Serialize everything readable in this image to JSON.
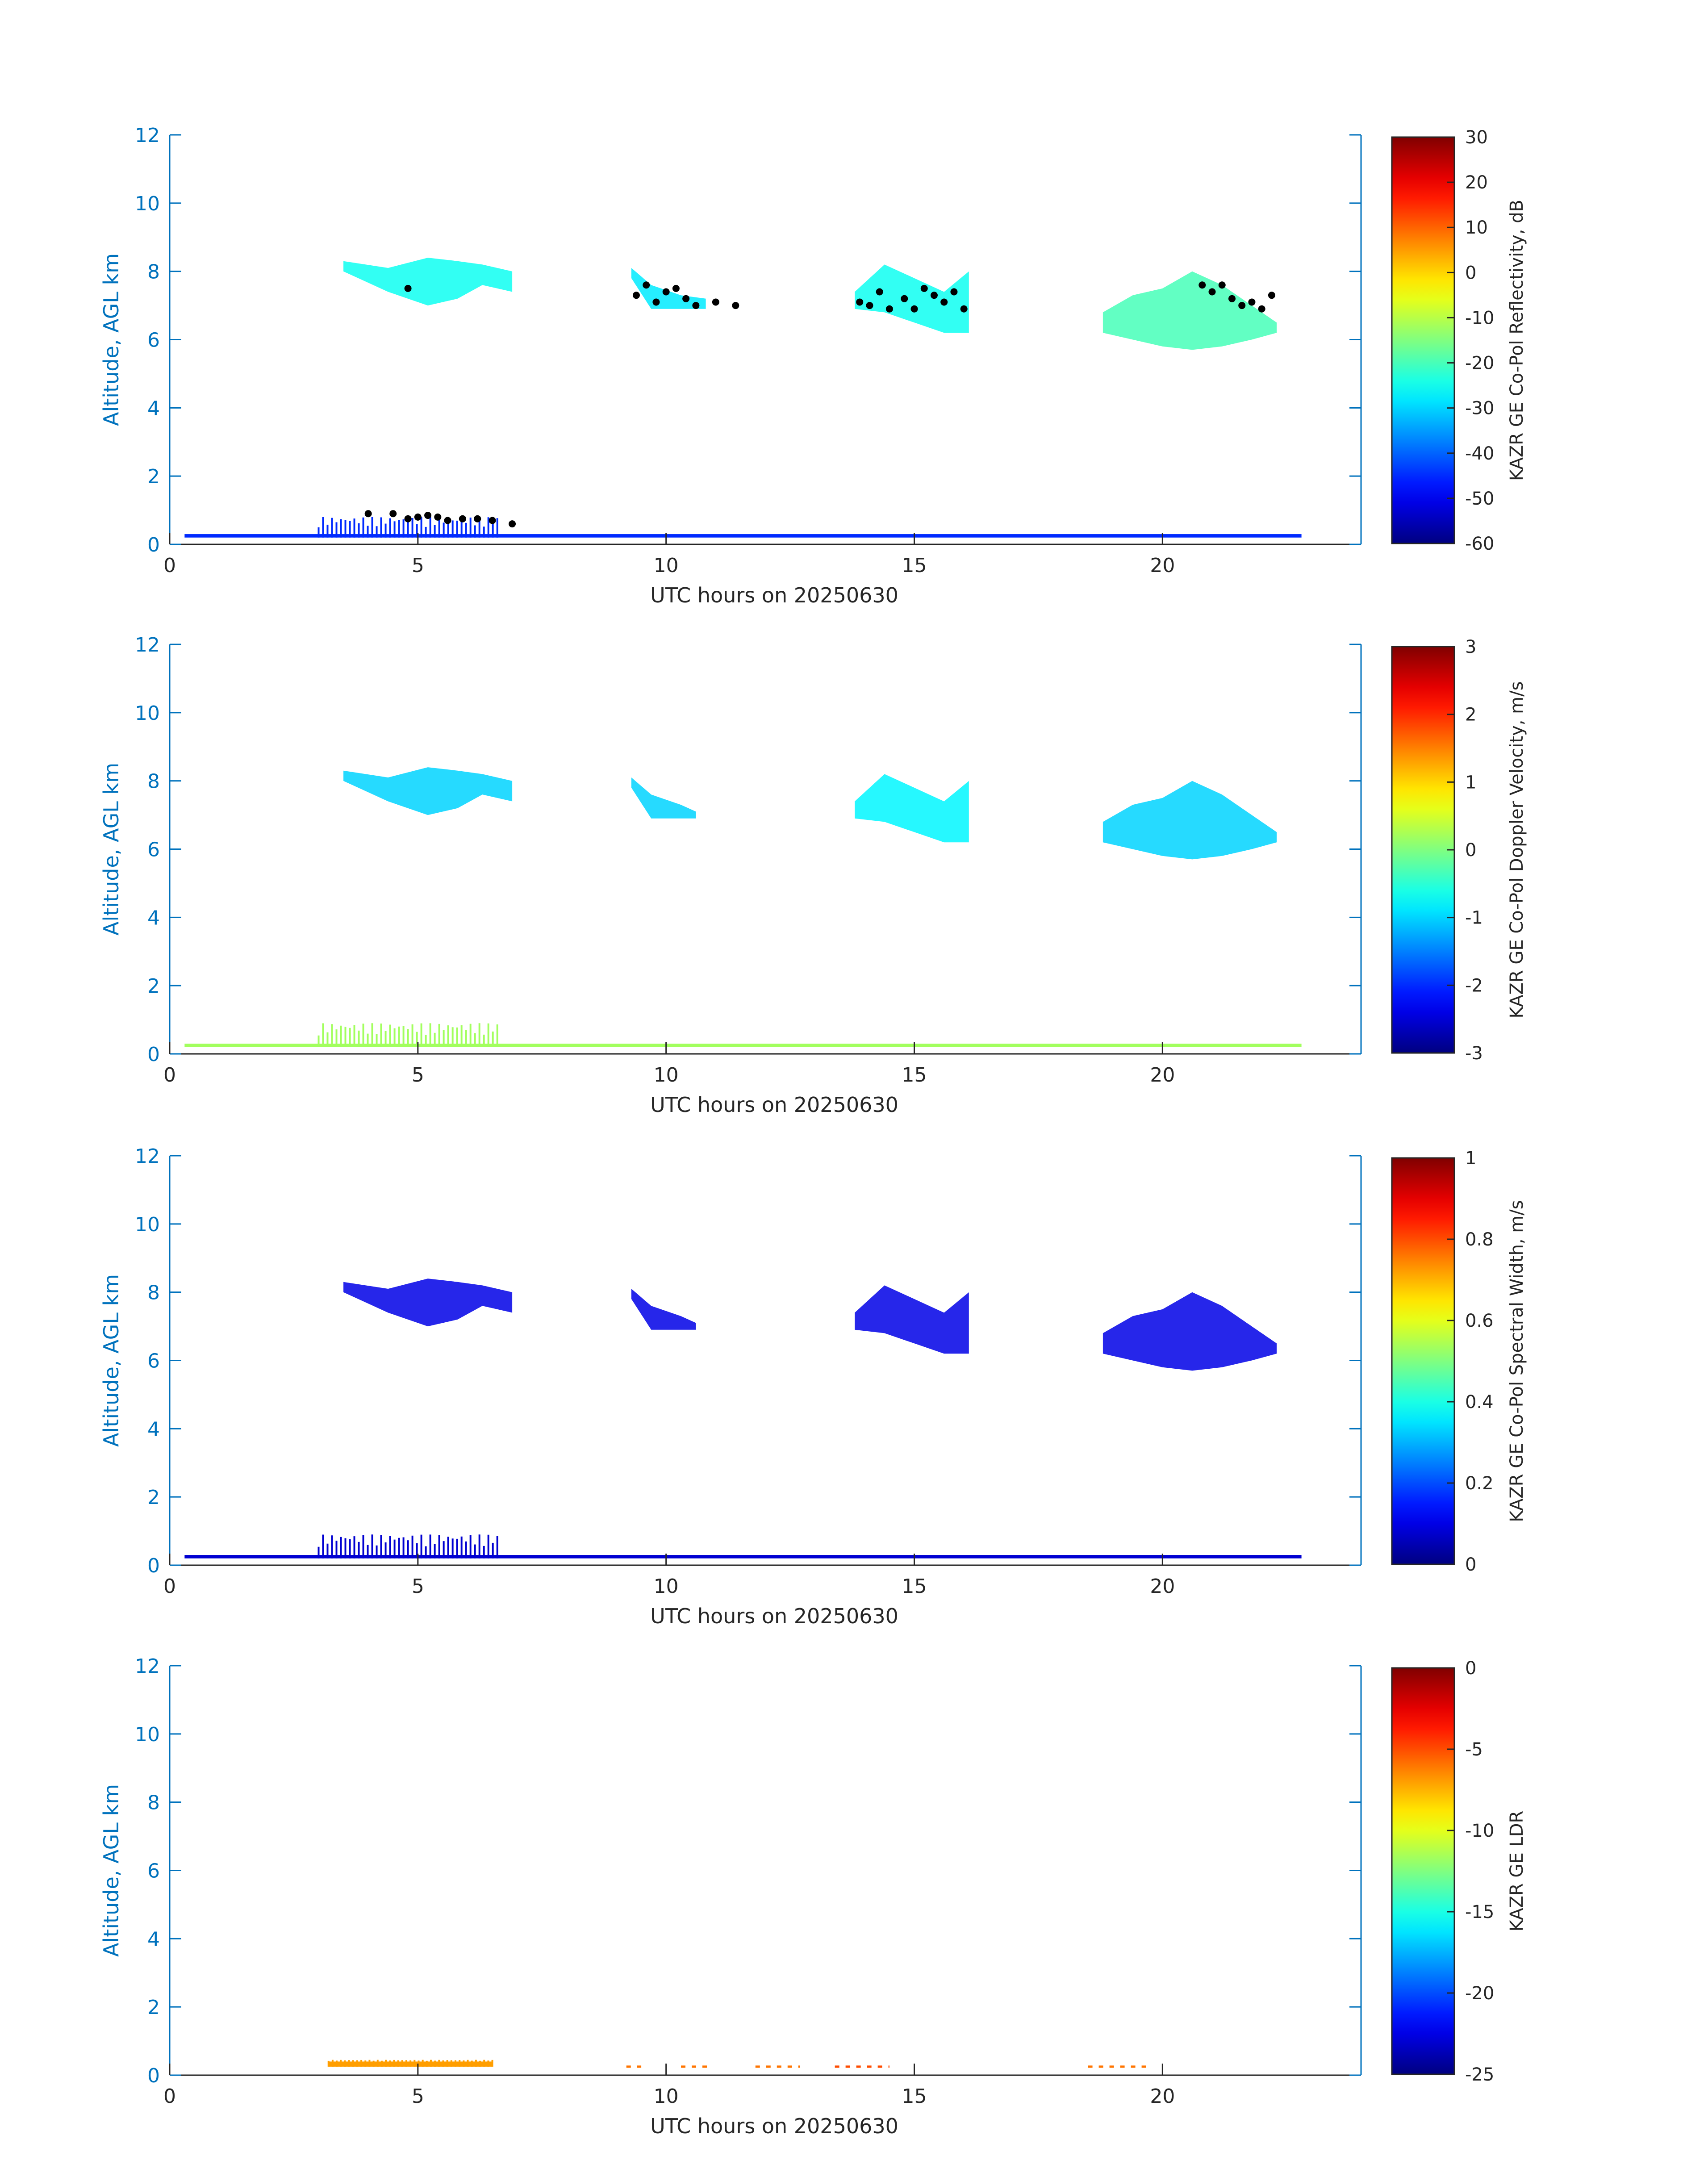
{
  "figure": {
    "colors": {
      "axis": "#0072bd",
      "label": "#262626",
      "background": "#ffffff",
      "contour_markers": "#000000"
    }
  },
  "chart_data": [
    {
      "type": "heatmap",
      "title": "",
      "xlabel": "UTC hours on 20250630",
      "ylabel": "Altitude, AGL km",
      "xlim": [
        0,
        24
      ],
      "ylim": [
        0,
        12
      ],
      "xticks": [
        0,
        5,
        10,
        15,
        20
      ],
      "yticks": [
        0,
        2,
        4,
        6,
        8,
        10,
        12
      ],
      "colorbar": {
        "label": "KAZR GE Co-Pol Reflectivity, dB",
        "colormap": "jet",
        "range": [
          -60,
          30
        ],
        "ticks": [
          30,
          20,
          10,
          0,
          -10,
          -20,
          -30,
          -40,
          -50,
          -60
        ]
      },
      "cloud_regions": [
        {
          "x": [
            3.5,
            4.4,
            5.2,
            5.8,
            6.3,
            6.9
          ],
          "top": [
            8.3,
            8.1,
            8.4,
            8.3,
            8.2,
            8.0
          ],
          "bottom": [
            8.0,
            7.4,
            7.0,
            7.2,
            7.6,
            7.4
          ],
          "value": -25
        },
        {
          "x": [
            9.3,
            9.7,
            10.3,
            10.8
          ],
          "top": [
            8.1,
            7.6,
            7.3,
            7.2
          ],
          "bottom": [
            7.8,
            6.9,
            6.9,
            6.9
          ],
          "value": -28
        },
        {
          "x": [
            13.8,
            14.4,
            15.0,
            15.6,
            16.1
          ],
          "top": [
            7.4,
            8.2,
            7.8,
            7.4,
            8.0
          ],
          "bottom": [
            6.9,
            6.8,
            6.5,
            6.2,
            6.2
          ],
          "value": -25
        },
        {
          "x": [
            18.8,
            19.4,
            20.0,
            20.6,
            21.2,
            21.8,
            22.3
          ],
          "top": [
            6.8,
            7.3,
            7.5,
            8.0,
            7.6,
            7.0,
            6.5
          ],
          "bottom": [
            6.2,
            6.0,
            5.8,
            5.7,
            5.8,
            6.0,
            6.2
          ],
          "value": -20
        }
      ],
      "surface_clutter": {
        "x": [
          0.3,
          22.8
        ],
        "top": 0.3,
        "bottom": 0.2,
        "value": -45,
        "enhanced_range": [
          3.0,
          6.6
        ],
        "enhanced_top": 0.8
      },
      "markers": [
        {
          "x": [
            4.0,
            4.5,
            4.8,
            5.0,
            5.2,
            5.4,
            5.6,
            5.9,
            6.2,
            6.5,
            6.9
          ],
          "y": [
            0.9,
            0.9,
            0.75,
            0.8,
            0.85,
            0.8,
            0.7,
            0.75,
            0.75,
            0.7,
            0.6
          ]
        },
        {
          "x": [
            4.8,
            9.4,
            9.6,
            9.8,
            10.0,
            10.2,
            10.4,
            10.6,
            11.0,
            11.4
          ],
          "y": [
            7.5,
            7.3,
            7.6,
            7.1,
            7.4,
            7.5,
            7.2,
            7.0,
            7.1,
            7.0
          ]
        },
        {
          "x": [
            13.9,
            14.1,
            14.3,
            14.5,
            14.8,
            15.0,
            15.2,
            15.4,
            15.6,
            15.8,
            16.0
          ],
          "y": [
            7.1,
            7.0,
            7.4,
            6.9,
            7.2,
            6.9,
            7.5,
            7.3,
            7.1,
            7.4,
            6.9
          ]
        },
        {
          "x": [
            20.8,
            21.0,
            21.2,
            21.4,
            21.6,
            21.8,
            22.0,
            22.2
          ],
          "y": [
            7.6,
            7.4,
            7.6,
            7.2,
            7.0,
            7.1,
            6.9,
            7.3
          ]
        }
      ]
    },
    {
      "type": "heatmap",
      "title": "",
      "xlabel": "UTC hours on 20250630",
      "ylabel": "Altitude, AGL km",
      "xlim": [
        0,
        24
      ],
      "ylim": [
        0,
        12
      ],
      "xticks": [
        0,
        5,
        10,
        15,
        20
      ],
      "yticks": [
        0,
        2,
        4,
        6,
        8,
        10,
        12
      ],
      "colorbar": {
        "label": "KAZR GE Co-Pol Doppler Velocity, m/s",
        "colormap": "jet",
        "range": [
          -3,
          3
        ],
        "ticks": [
          3,
          2,
          1,
          0,
          -1,
          -2,
          -3
        ]
      },
      "cloud_regions": [
        {
          "x": [
            3.5,
            4.4,
            5.2,
            5.8,
            6.3,
            6.9
          ],
          "top": [
            8.3,
            8.1,
            8.4,
            8.3,
            8.2,
            8.0
          ],
          "bottom": [
            8.0,
            7.4,
            7.0,
            7.2,
            7.6,
            7.4
          ],
          "value": -1.0
        },
        {
          "x": [
            9.3,
            9.7,
            10.3,
            10.6
          ],
          "top": [
            8.1,
            7.6,
            7.3,
            7.1
          ],
          "bottom": [
            7.8,
            6.9,
            6.9,
            6.9
          ],
          "value": -1.0
        },
        {
          "x": [
            13.8,
            14.4,
            15.0,
            15.6,
            16.1
          ],
          "top": [
            7.4,
            8.2,
            7.8,
            7.4,
            8.0
          ],
          "bottom": [
            6.9,
            6.8,
            6.5,
            6.2,
            6.2
          ],
          "value": -0.8
        },
        {
          "x": [
            18.8,
            19.4,
            20.0,
            20.6,
            21.2,
            21.8,
            22.3
          ],
          "top": [
            6.8,
            7.3,
            7.5,
            8.0,
            7.6,
            7.0,
            6.5
          ],
          "bottom": [
            6.2,
            6.0,
            5.8,
            5.7,
            5.8,
            6.0,
            6.2
          ],
          "value": -1.0
        }
      ],
      "surface_clutter": {
        "x": [
          0.3,
          22.8
        ],
        "top": 0.3,
        "bottom": 0.2,
        "value": 0.2,
        "enhanced_range": [
          3.0,
          6.6
        ],
        "enhanced_top": 0.9
      }
    },
    {
      "type": "heatmap",
      "title": "",
      "xlabel": "UTC hours on 20250630",
      "ylabel": "Altitude, AGL km",
      "xlim": [
        0,
        24
      ],
      "ylim": [
        0,
        12
      ],
      "xticks": [
        0,
        5,
        10,
        15,
        20
      ],
      "yticks": [
        0,
        2,
        4,
        6,
        8,
        10,
        12
      ],
      "colorbar": {
        "label": "KAZR GE Co-Pol Spectral Width, m/s",
        "colormap": "jet",
        "range": [
          0,
          1
        ],
        "ticks": [
          1,
          0.8,
          0.6,
          0.4,
          0.2,
          0
        ]
      },
      "cloud_regions": [
        {
          "x": [
            3.5,
            4.4,
            5.2,
            5.8,
            6.3,
            6.9
          ],
          "top": [
            8.3,
            8.1,
            8.4,
            8.3,
            8.2,
            8.0
          ],
          "bottom": [
            8.0,
            7.4,
            7.0,
            7.2,
            7.6,
            7.4
          ],
          "value": 0.1
        },
        {
          "x": [
            9.3,
            9.7,
            10.3,
            10.6
          ],
          "top": [
            8.1,
            7.6,
            7.3,
            7.1
          ],
          "bottom": [
            7.8,
            6.9,
            6.9,
            6.9
          ],
          "value": 0.1
        },
        {
          "x": [
            13.8,
            14.4,
            15.0,
            15.6,
            16.1
          ],
          "top": [
            7.4,
            8.2,
            7.8,
            7.4,
            8.0
          ],
          "bottom": [
            6.9,
            6.8,
            6.5,
            6.2,
            6.2
          ],
          "value": 0.1
        },
        {
          "x": [
            18.8,
            19.4,
            20.0,
            20.6,
            21.2,
            21.8,
            22.3
          ],
          "top": [
            6.8,
            7.3,
            7.5,
            8.0,
            7.6,
            7.0,
            6.5
          ],
          "bottom": [
            6.2,
            6.0,
            5.8,
            5.7,
            5.8,
            6.0,
            6.2
          ],
          "value": 0.1
        }
      ],
      "surface_clutter": {
        "x": [
          0.3,
          22.8
        ],
        "top": 0.3,
        "bottom": 0.2,
        "value": 0.08,
        "enhanced_range": [
          3.0,
          6.6
        ],
        "enhanced_top": 0.9
      }
    },
    {
      "type": "heatmap",
      "title": "",
      "xlabel": "UTC hours on 20250630",
      "ylabel": "Altitude, AGL km",
      "xlim": [
        0,
        24
      ],
      "ylim": [
        0,
        12
      ],
      "xticks": [
        0,
        5,
        10,
        15,
        20
      ],
      "yticks": [
        0,
        2,
        4,
        6,
        8,
        10,
        12
      ],
      "colorbar": {
        "label": "KAZR GE LDR",
        "colormap": "jet",
        "range": [
          -25,
          0
        ],
        "ticks": [
          0,
          -5,
          -10,
          -15,
          -20,
          -25
        ]
      },
      "cloud_regions": [],
      "surface_clutter": {
        "x": [
          3.2,
          6.5
        ],
        "top": 0.4,
        "bottom": 0.25,
        "value": -7,
        "enhanced_range": [
          3.2,
          6.5
        ],
        "enhanced_top": 0.45
      },
      "sparse_segments": [
        {
          "x": [
            9.2,
            9.5
          ],
          "y": 0.25,
          "value": -6
        },
        {
          "x": [
            10.3,
            10.9
          ],
          "y": 0.25,
          "value": -6
        },
        {
          "x": [
            11.8,
            12.7
          ],
          "y": 0.25,
          "value": -6
        },
        {
          "x": [
            13.4,
            14.5
          ],
          "y": 0.25,
          "value": -5
        },
        {
          "x": [
            18.5,
            19.7
          ],
          "y": 0.25,
          "value": -6
        }
      ]
    }
  ]
}
